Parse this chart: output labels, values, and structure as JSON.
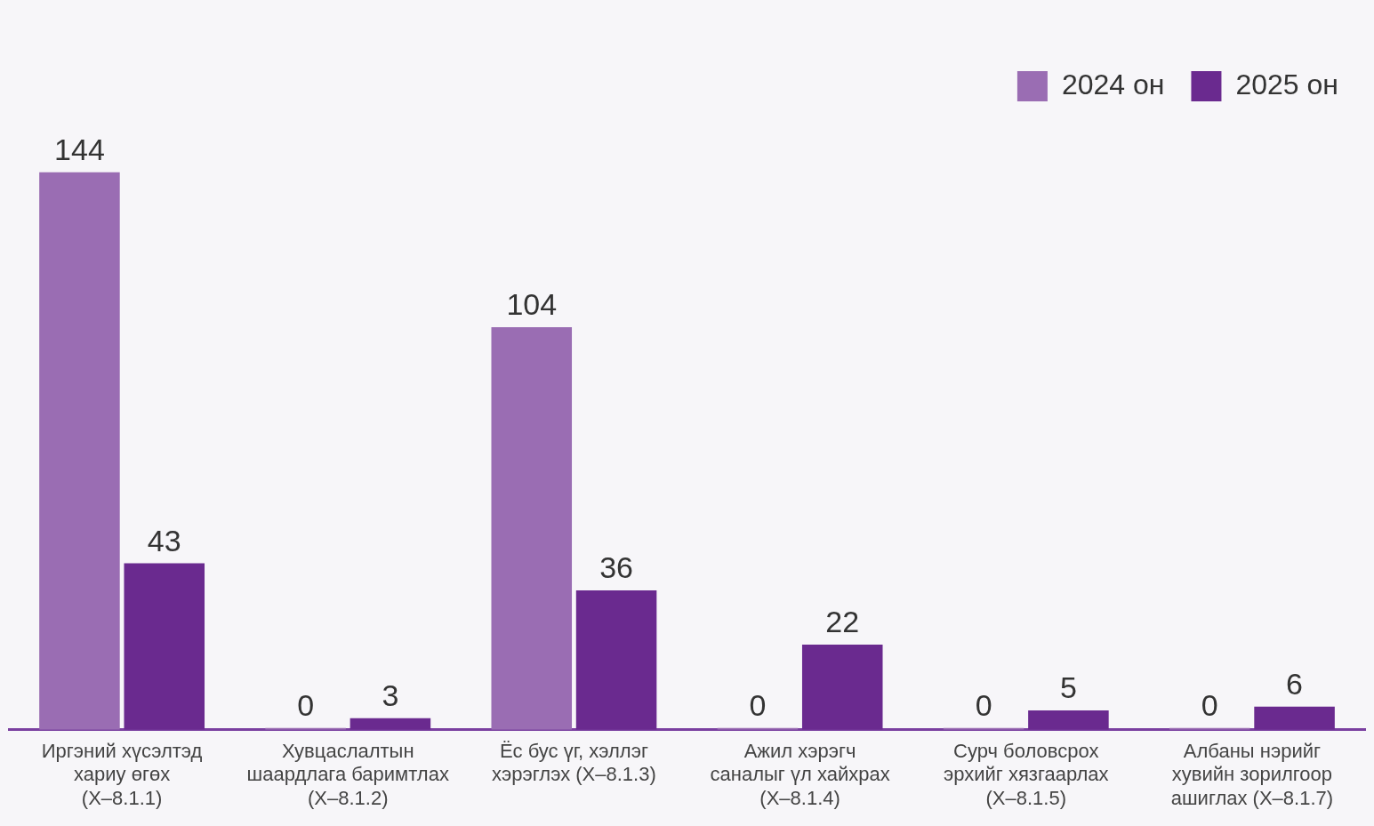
{
  "chart_data": {
    "type": "bar",
    "categories": [
      "Иргэний хүсэлтэд\nхариу өгөх\n(Х–8.1.1)",
      "Хувцаслалтын\nшаардлага баримтлах\n(Х–8.1.2)",
      "Ёс бус үг, хэллэг\nхэрэглэх (Х–8.1.3)",
      "Ажил хэрэгч\nсаналыг үл хайхрах\n(Х–8.1.4)",
      "Сурч боловсрох\nэрхийг хязгаарлах\n(Х–8.1.5)",
      "Албаны нэрийг\nхувийн зорилгоор\nашиглах (Х–8.1.7)"
    ],
    "series": [
      {
        "name": "2024 он",
        "color": "#9a6db3",
        "values": [
          144,
          0,
          104,
          0,
          0,
          0
        ]
      },
      {
        "name": "2025 он",
        "color": "#6a2a8f",
        "values": [
          43,
          3,
          36,
          22,
          5,
          6
        ]
      }
    ],
    "data_labels": true,
    "legend": "top right",
    "grid": false,
    "tick_labels": "x"
  }
}
